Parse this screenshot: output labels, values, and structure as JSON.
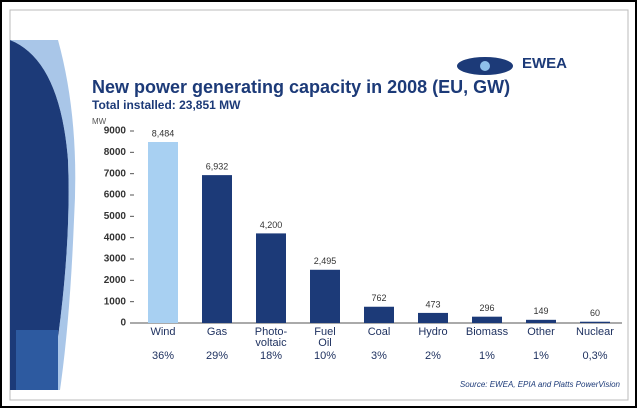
{
  "chart_data": {
    "type": "bar",
    "title": "New power generating capacity in 2008 (EU, GW)",
    "subtitle": "Total installed: 23,851 MW",
    "y_label": "MW",
    "logo": "EWEA",
    "source": "Source: EWEA, EPIA and Platts PowerVision",
    "categories": [
      "Wind",
      "Gas",
      "Photo-\nvoltaic",
      "Fuel\nOil",
      "Coal",
      "Hydro",
      "Biomass",
      "Other",
      "Nuclear"
    ],
    "values": [
      8484,
      6932,
      4200,
      2495,
      762,
      473,
      296,
      149,
      60
    ],
    "value_labels": [
      "8,484",
      "6,932",
      "4,200",
      "2,495",
      "762",
      "473",
      "296",
      "149",
      "60"
    ],
    "share_labels": [
      "36%",
      "29%",
      "18%",
      "10%",
      "3%",
      "2%",
      "1%",
      "1%",
      "0,3%"
    ],
    "colors": [
      "#a8d0f2",
      "#1c3a78",
      "#1c3a78",
      "#1c3a78",
      "#1c3a78",
      "#1c3a78",
      "#1c3a78",
      "#1c3a78",
      "#1c3a78"
    ],
    "ylim": [
      0,
      9000
    ],
    "yticks": [
      0,
      1000,
      2000,
      3000,
      4000,
      5000,
      6000,
      7000,
      8000,
      9000
    ],
    "grid": false
  }
}
